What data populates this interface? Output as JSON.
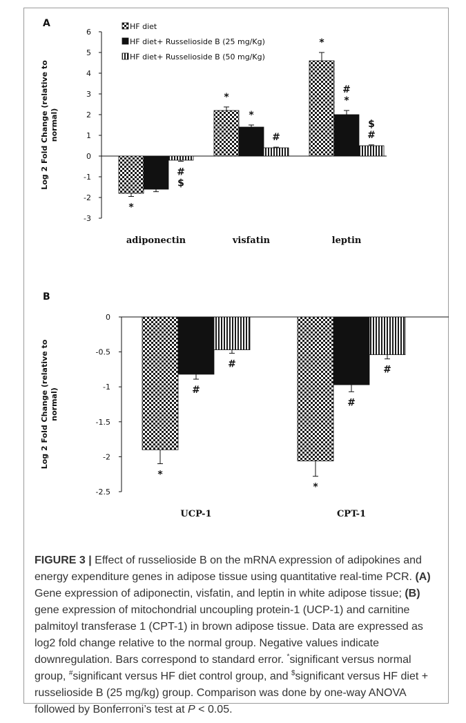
{
  "chart_data": [
    {
      "panel": "A",
      "type": "bar",
      "ylabel": "Log 2 Fold Change (relative to normal)",
      "ylim": [
        -3,
        6
      ],
      "yticks": [
        6,
        5,
        4,
        3,
        2,
        1,
        0,
        -1,
        -2,
        -3
      ],
      "categories": [
        "adiponectin",
        "visfatin",
        "leptin"
      ],
      "legend_position": "top-left",
      "series": [
        {
          "name": "HF diet",
          "pattern": "checker",
          "values": [
            -1.8,
            2.2,
            4.6
          ],
          "errors": [
            0.15,
            0.17,
            0.4
          ],
          "marks": [
            "*",
            "*",
            "*"
          ]
        },
        {
          "name": "HF diet+ Russelioside B (25 mg/Kg)",
          "pattern": "solid",
          "values": [
            -1.6,
            1.4,
            2.0
          ],
          "errors": [
            0.12,
            0.1,
            0.2
          ],
          "marks": [
            "",
            "*",
            "#\n*"
          ]
        },
        {
          "name": "HF diet+ Russelioside B (50 mg/Kg)",
          "pattern": "vstripe",
          "values": [
            -0.2,
            0.4,
            0.5
          ],
          "errors": [
            0.05,
            0.03,
            0.04
          ],
          "marks": [
            "#\n$",
            "#",
            "$\n#"
          ]
        }
      ]
    },
    {
      "panel": "B",
      "type": "bar",
      "ylabel": "Log 2 Fold Change (relative to normal)",
      "ylim": [
        -2.5,
        0
      ],
      "yticks": [
        0,
        -0.5,
        -1,
        -1.5,
        -2,
        -2.5
      ],
      "categories": [
        "UCP-1",
        "CPT-1"
      ],
      "series": [
        {
          "name": "HF diet",
          "pattern": "checker",
          "values": [
            -1.9,
            -2.06
          ],
          "errors": [
            0.2,
            0.22
          ],
          "marks": [
            "*",
            "*"
          ]
        },
        {
          "name": "HF diet+ Russelioside B (25 mg/Kg)",
          "pattern": "solid",
          "values": [
            -0.82,
            -0.97
          ],
          "errors": [
            0.07,
            0.1
          ],
          "marks": [
            "#",
            "#"
          ]
        },
        {
          "name": "HF diet+ Russelioside B (50 mg/Kg)",
          "pattern": "vstripe",
          "values": [
            -0.47,
            -0.54
          ],
          "errors": [
            0.05,
            0.06
          ],
          "marks": [
            "#",
            "#"
          ]
        }
      ]
    }
  ],
  "caption": {
    "label": "FIGURE 3 |",
    "text1": " Effect of russelioside B on the mRNA expression of adipokines and energy expenditure genes in adipose tissue using quantitative real-time PCR. ",
    "a_label": "(A)",
    "text2": " Gene expression of adiponectin, visfatin, and leptin in white adipose tissue; ",
    "b_label": "(B)",
    "text3": " gene expression of mitochondrial uncoupling protein-1 (UCP-1) and carnitine palmitoyl transferase 1 (CPT-1) in brown adipose tissue. Data are expressed as log2 fold change relative to the normal group. Negative values indicate downregulation. Bars correspond to standard error. ",
    "star_sup": "*",
    "text4": "significant versus normal group, ",
    "hash_sup": "#",
    "text5": "significant versus HF diet control group, and ",
    "dollar_sup": "$",
    "text6": "significant versus HF diet + russelioside B (25 mg/kg) group. Comparison was done by one-way ANOVA followed by Bonferroni’s test at ",
    "p_label": "P",
    "text7": " < 0.05."
  }
}
